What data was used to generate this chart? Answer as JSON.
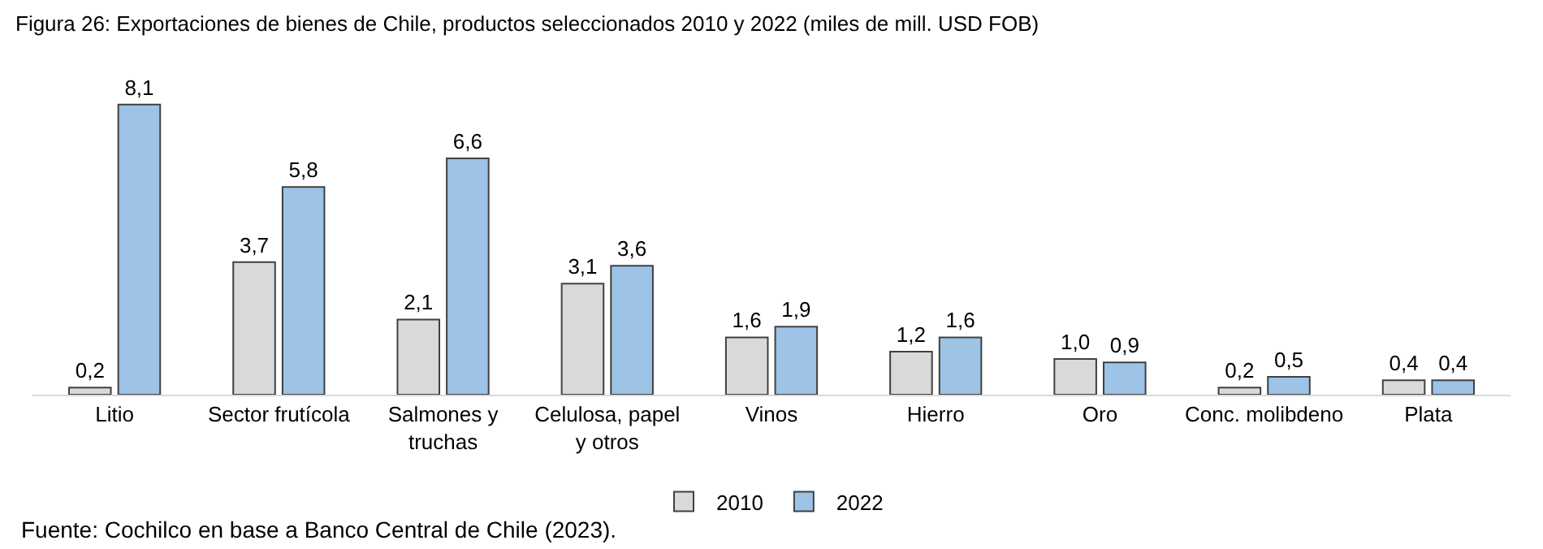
{
  "chart_data": {
    "type": "bar",
    "title": "Figura 26: Exportaciones de bienes de Chile, productos seleccionados 2010 y 2022 (miles de mill. USD FOB)",
    "categories": [
      "Litio",
      "Sector frutícola",
      "Salmones y truchas",
      "Celulosa, papel y otros",
      "Vinos",
      "Hierro",
      "Oro",
      "Conc. molibdeno",
      "Plata"
    ],
    "series": [
      {
        "name": "2010",
        "color": "#d9d9d9",
        "values": [
          0.2,
          3.7,
          2.1,
          3.1,
          1.6,
          1.2,
          1.0,
          0.2,
          0.4
        ],
        "value_labels": [
          "0,2",
          "3,7",
          "2,1",
          "3,1",
          "1,6",
          "1,2",
          "1,0",
          "0,2",
          "0,4"
        ]
      },
      {
        "name": "2022",
        "color": "#9dc3e6",
        "values": [
          8.1,
          5.8,
          6.6,
          3.6,
          1.9,
          1.6,
          0.9,
          0.5,
          0.4
        ],
        "value_labels": [
          "8,1",
          "5,8",
          "6,6",
          "3,6",
          "1,9",
          "1,6",
          "0,9",
          "0,5",
          "0,4"
        ]
      }
    ],
    "legend": "bottom",
    "annotations": [
      "Fuente: Cochilco en base a Banco Central de Chile (2023)."
    ]
  }
}
